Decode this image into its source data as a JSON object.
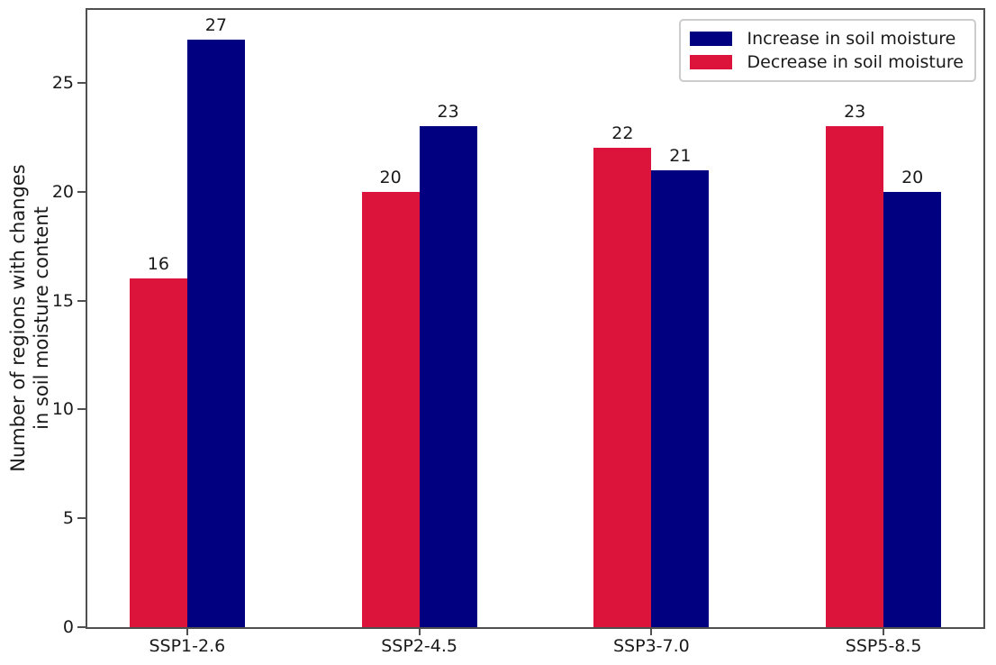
{
  "chart_data": {
    "type": "bar",
    "title": "",
    "xlabel": "",
    "ylabel": "Number of regions with changes\nin soil moisture content",
    "categories": [
      "SSP1-2.6",
      "SSP2-4.5",
      "SSP3-7.0",
      "SSP5-8.5"
    ],
    "series": [
      {
        "name": "Decrease in soil moisture",
        "color": "#dc143c",
        "values": [
          16,
          20,
          22,
          23
        ]
      },
      {
        "name": "Increase in soil moisture",
        "color": "#000080",
        "values": [
          27,
          23,
          21,
          20
        ]
      }
    ],
    "bar_value_labels_shown": true,
    "yticks": [
      0,
      5,
      10,
      15,
      20,
      25
    ],
    "ylim": [
      0,
      28.35
    ],
    "grid": false,
    "legend": {
      "position": "upper right",
      "items": [
        {
          "label": "Increase in soil moisture",
          "color": "#000080"
        },
        {
          "label": "Decrease in soil moisture",
          "color": "#dc143c"
        }
      ]
    }
  }
}
